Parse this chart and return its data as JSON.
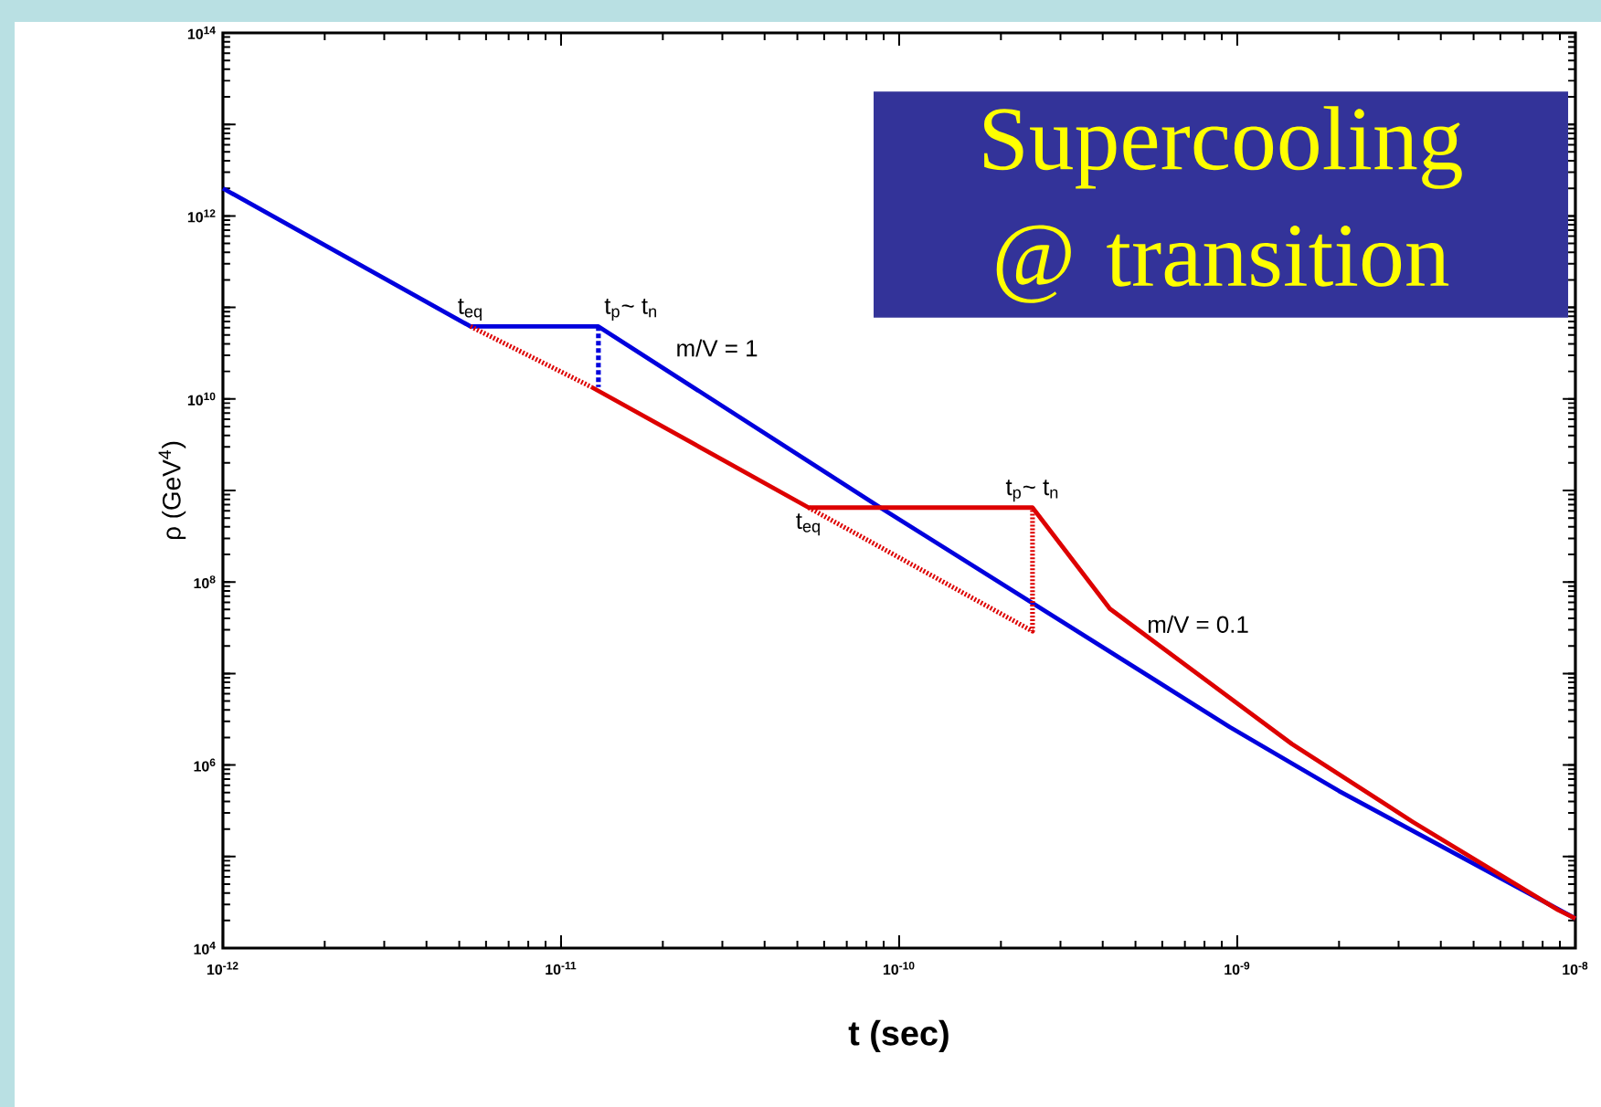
{
  "chart_data": {
    "type": "line",
    "title": "Supercooling @ transition",
    "xlabel": "t (sec)",
    "ylabel": "ρ (GeV$^{4}$)",
    "log": "xy",
    "grid": false,
    "marker": "none",
    "xlim": [
      1e-12,
      1e-08
    ],
    "ylim": [
      10000.0,
      100000000000000.0
    ],
    "xticks": [
      {
        "value": 1e-12,
        "label": "10$^{-12}$"
      },
      {
        "value": 1e-11,
        "label": "10$^{-11}$"
      },
      {
        "value": 1e-10,
        "label": "10$^{-10}$"
      },
      {
        "value": 1e-09,
        "label": "10$^{-9}$"
      },
      {
        "value": 1e-08,
        "label": "10$^{-8}$"
      }
    ],
    "yticks": [
      {
        "value": 10000.0,
        "label": "10$^{4}$"
      },
      {
        "value": 100000.0,
        "label": null
      },
      {
        "value": 1000000.0,
        "label": "10$^{6}$"
      },
      {
        "value": 10000000.0,
        "label": null
      },
      {
        "value": 100000000.0,
        "label": "10$^{8}$"
      },
      {
        "value": 1000000000.0,
        "label": null
      },
      {
        "value": 10000000000.0,
        "label": "10$^{10}$"
      },
      {
        "value": 100000000000.0,
        "label": null
      },
      {
        "value": 1000000000000.0,
        "label": "10$^{12}$"
      },
      {
        "value": 10000000000000.0,
        "label": null
      },
      {
        "value": 100000000000000.0,
        "label": "10$^{14}$"
      }
    ],
    "series": [
      {
        "color": "#0000dd",
        "line_style": "solid",
        "x": [
          1e-12,
          5.4e-12,
          1.29e-11,
          8.8e-11,
          9.5e-10,
          2e-09,
          1e-08
        ],
        "values": [
          2000000000000.0,
          62000000000.0,
          62000000000.0,
          650000000.0,
          2600000.0,
          520000.0,
          21000.0
        ]
      },
      {
        "color": "#dd0000",
        "line_style": "solid",
        "x": [
          1.23e-11,
          5.4e-11,
          2.48e-10,
          4.2e-10,
          1.45e-09,
          3.3e-09,
          8.9e-09,
          1e-08
        ],
        "values": [
          13500000000.0,
          650000000.0,
          650000000.0,
          51000000.0,
          1700000.0,
          240000.0,
          26000.0,
          21000.0
        ]
      },
      {
        "color": "#dd0000",
        "line_style": "dotted",
        "x": [
          5.4e-12,
          1.23e-11
        ],
        "values": [
          62000000000.0,
          13500000000.0
        ]
      },
      {
        "color": "#0000dd",
        "line_style": "dashed",
        "x": [
          1.29e-11,
          1.29e-11
        ],
        "values": [
          62000000000.0,
          13500000000.0
        ]
      },
      {
        "color": "#dd0000",
        "line_style": "dotted",
        "x": [
          5.4e-11,
          2.48e-10,
          2.48e-10
        ],
        "values": [
          650000000.0,
          29000000.0,
          650000000.0
        ]
      }
    ],
    "annotations": [
      {
        "text": "t$_{eq}$",
        "x": 5.4e-12,
        "y": 62000000000.0
      },
      {
        "text": "t$_{p}$~ t$_{n}$",
        "x": 1.29e-11,
        "y": 62000000000.0
      },
      {
        "text": "m/V = 1",
        "x": 2.1e-11,
        "y": 25000000000.0
      },
      {
        "text": "t$_{eq}$",
        "x": 5.4e-11,
        "y": 650000000.0
      },
      {
        "text": "t$_{p}$~ t$_{n}$",
        "x": 2.48e-10,
        "y": 650000000.0
      },
      {
        "text": "m/V = 0.1",
        "x": 5.2e-10,
        "y": 24000000.0
      }
    ]
  }
}
